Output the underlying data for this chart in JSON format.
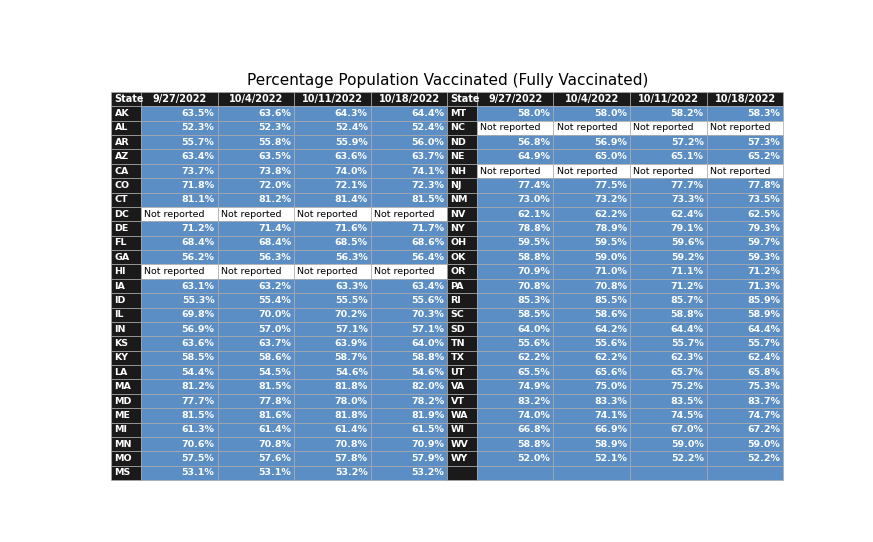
{
  "title": "Percentage Population Vaccinated (Fully Vaccinated)",
  "columns": [
    "9/27/2022",
    "10/4/2022",
    "10/11/2022",
    "10/18/2022"
  ],
  "left_table": {
    "states": [
      "AK",
      "AL",
      "AR",
      "AZ",
      "CA",
      "CO",
      "CT",
      "DC",
      "DE",
      "FL",
      "GA",
      "HI",
      "IA",
      "ID",
      "IL",
      "IN",
      "KS",
      "KY",
      "LA",
      "MA",
      "MD",
      "ME",
      "MI",
      "MN",
      "MO",
      "MS"
    ],
    "data": [
      [
        "63.5%",
        "63.6%",
        "64.3%",
        "64.4%"
      ],
      [
        "52.3%",
        "52.3%",
        "52.4%",
        "52.4%"
      ],
      [
        "55.7%",
        "55.8%",
        "55.9%",
        "56.0%"
      ],
      [
        "63.4%",
        "63.5%",
        "63.6%",
        "63.7%"
      ],
      [
        "73.7%",
        "73.8%",
        "74.0%",
        "74.1%"
      ],
      [
        "71.8%",
        "72.0%",
        "72.1%",
        "72.3%"
      ],
      [
        "81.1%",
        "81.2%",
        "81.4%",
        "81.5%"
      ],
      [
        "Not reported",
        "Not reported",
        "Not reported",
        "Not reported"
      ],
      [
        "71.2%",
        "71.4%",
        "71.6%",
        "71.7%"
      ],
      [
        "68.4%",
        "68.4%",
        "68.5%",
        "68.6%"
      ],
      [
        "56.2%",
        "56.3%",
        "56.3%",
        "56.4%"
      ],
      [
        "Not reported",
        "Not reported",
        "Not reported",
        "Not reported"
      ],
      [
        "63.1%",
        "63.2%",
        "63.3%",
        "63.4%"
      ],
      [
        "55.3%",
        "55.4%",
        "55.5%",
        "55.6%"
      ],
      [
        "69.8%",
        "70.0%",
        "70.2%",
        "70.3%"
      ],
      [
        "56.9%",
        "57.0%",
        "57.1%",
        "57.1%"
      ],
      [
        "63.6%",
        "63.7%",
        "63.9%",
        "64.0%"
      ],
      [
        "58.5%",
        "58.6%",
        "58.7%",
        "58.8%"
      ],
      [
        "54.4%",
        "54.5%",
        "54.6%",
        "54.6%"
      ],
      [
        "81.2%",
        "81.5%",
        "81.8%",
        "82.0%"
      ],
      [
        "77.7%",
        "77.8%",
        "78.0%",
        "78.2%"
      ],
      [
        "81.5%",
        "81.6%",
        "81.8%",
        "81.9%"
      ],
      [
        "61.3%",
        "61.4%",
        "61.4%",
        "61.5%"
      ],
      [
        "70.6%",
        "70.8%",
        "70.8%",
        "70.9%"
      ],
      [
        "57.5%",
        "57.6%",
        "57.8%",
        "57.9%"
      ],
      [
        "53.1%",
        "53.1%",
        "53.2%",
        "53.2%"
      ]
    ]
  },
  "right_table": {
    "states": [
      "MT",
      "NC",
      "ND",
      "NE",
      "NH",
      "NJ",
      "NM",
      "NV",
      "NY",
      "OH",
      "OK",
      "OR",
      "PA",
      "RI",
      "SC",
      "SD",
      "TN",
      "TX",
      "UT",
      "VA",
      "VT",
      "WA",
      "WI",
      "WV",
      "WY"
    ],
    "data": [
      [
        "58.0%",
        "58.0%",
        "58.2%",
        "58.3%"
      ],
      [
        "Not reported",
        "Not reported",
        "Not reported",
        "Not reported"
      ],
      [
        "56.8%",
        "56.9%",
        "57.2%",
        "57.3%"
      ],
      [
        "64.9%",
        "65.0%",
        "65.1%",
        "65.2%"
      ],
      [
        "Not reported",
        "Not reported",
        "Not reported",
        "Not reported"
      ],
      [
        "77.4%",
        "77.5%",
        "77.7%",
        "77.8%"
      ],
      [
        "73.0%",
        "73.2%",
        "73.3%",
        "73.5%"
      ],
      [
        "62.1%",
        "62.2%",
        "62.4%",
        "62.5%"
      ],
      [
        "78.8%",
        "78.9%",
        "79.1%",
        "79.3%"
      ],
      [
        "59.5%",
        "59.5%",
        "59.6%",
        "59.7%"
      ],
      [
        "58.8%",
        "59.0%",
        "59.2%",
        "59.3%"
      ],
      [
        "70.9%",
        "71.0%",
        "71.1%",
        "71.2%"
      ],
      [
        "70.8%",
        "70.8%",
        "71.2%",
        "71.3%"
      ],
      [
        "85.3%",
        "85.5%",
        "85.7%",
        "85.9%"
      ],
      [
        "58.5%",
        "58.6%",
        "58.8%",
        "58.9%"
      ],
      [
        "64.0%",
        "64.2%",
        "64.4%",
        "64.4%"
      ],
      [
        "55.6%",
        "55.6%",
        "55.7%",
        "55.7%"
      ],
      [
        "62.2%",
        "62.2%",
        "62.3%",
        "62.4%"
      ],
      [
        "65.5%",
        "65.6%",
        "65.7%",
        "65.8%"
      ],
      [
        "74.9%",
        "75.0%",
        "75.2%",
        "75.3%"
      ],
      [
        "83.2%",
        "83.3%",
        "83.5%",
        "83.7%"
      ],
      [
        "74.0%",
        "74.1%",
        "74.5%",
        "74.7%"
      ],
      [
        "66.8%",
        "66.9%",
        "67.0%",
        "67.2%"
      ],
      [
        "58.8%",
        "58.9%",
        "59.0%",
        "59.0%"
      ],
      [
        "52.0%",
        "52.1%",
        "52.2%",
        "52.2%"
      ]
    ]
  },
  "header_bg": "#1a1a1a",
  "header_fg": "#ffffff",
  "cell_bg_blue": "#5b8ec4",
  "cell_bg_white": "#ffffff",
  "cell_fg_white": "#ffffff",
  "cell_fg_black": "#000000",
  "title_fg": "#000000",
  "fig_bg": "#ffffff",
  "grid_color": "#aaaaaa",
  "title_fontsize": 11,
  "header_fontsize": 7,
  "data_fontsize": 6.8,
  "fig_width": 8.73,
  "fig_height": 5.42,
  "dpi": 100
}
